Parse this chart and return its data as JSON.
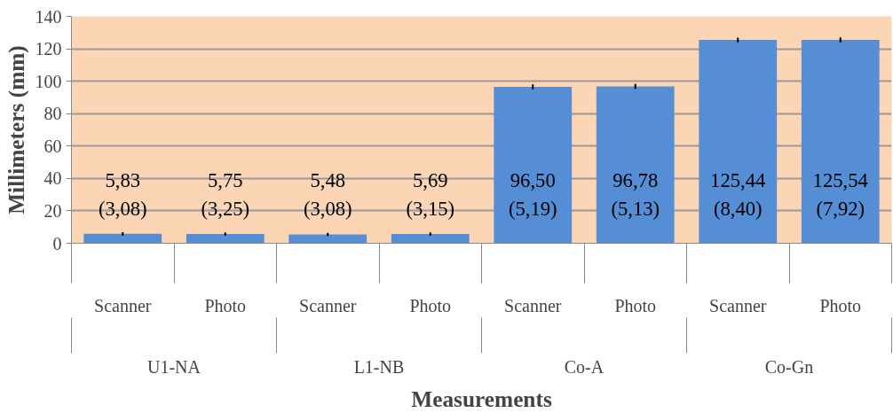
{
  "chart_data": {
    "type": "bar",
    "xlabel": "Measurements",
    "ylabel": "Millimeters (mm)",
    "categories": [
      "Scanner",
      "Photo",
      "Scanner",
      "Photo",
      "Scanner",
      "Photo",
      "Scanner",
      "Photo"
    ],
    "values": [
      5.83,
      5.75,
      5.48,
      5.69,
      96.5,
      96.78,
      125.44,
      125.54
    ],
    "errors": [
      1,
      1,
      1,
      1,
      1.5,
      1.5,
      1.5,
      1.5
    ],
    "value_labels": [
      "5,83\n(3,08)",
      "5,75\n(3,25)",
      "5,48\n(3,08)",
      "5,69\n(3,15)",
      "96,50\n(5,19)",
      "96,78\n(5,13)",
      "125,44\n(8,40)",
      "125,54\n(7,92)"
    ],
    "annotations": [
      "U1-NA",
      "L1-NB",
      "Co-A",
      "Co-Gn"
    ],
    "color": "#558ed5",
    "ylim": [
      0,
      140
    ],
    "yticks": [
      0,
      20,
      40,
      60,
      80,
      100,
      120,
      140
    ],
    "grid": "y"
  }
}
